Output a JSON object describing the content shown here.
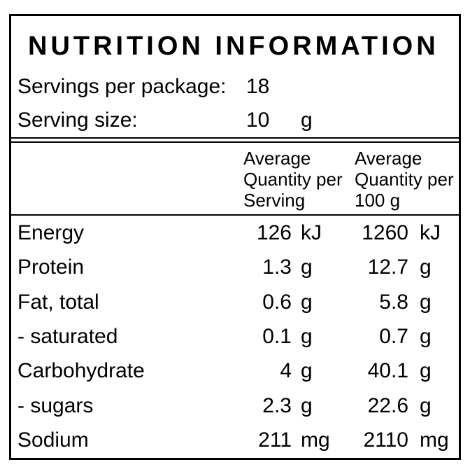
{
  "label": {
    "title": "NUTRITION INFORMATION",
    "servings_per_package": {
      "label": "Servings per package:",
      "value": "18"
    },
    "serving_size": {
      "label": "Serving size:",
      "value": "10",
      "unit": "g"
    },
    "columns": {
      "per_serving": "Average\nQuantity per\nServing",
      "per_100g": "Average\nQuantity per\n100 g"
    },
    "rows": [
      {
        "nutrient": "Energy",
        "per_serving": "126",
        "per_serving_unit": "kJ",
        "per_100g": "1260",
        "per_100g_unit": "kJ"
      },
      {
        "nutrient": "Protein",
        "per_serving": "1.3",
        "per_serving_unit": "g",
        "per_100g": "12.7",
        "per_100g_unit": "g"
      },
      {
        "nutrient": "Fat, total",
        "per_serving": "0.6",
        "per_serving_unit": "g",
        "per_100g": "5.8",
        "per_100g_unit": "g"
      },
      {
        "nutrient": "- saturated",
        "per_serving": "0.1",
        "per_serving_unit": "g",
        "per_100g": "0.7",
        "per_100g_unit": "g"
      },
      {
        "nutrient": "Carbohydrate",
        "per_serving": "4",
        "per_serving_unit": "g",
        "per_100g": "40.1",
        "per_100g_unit": "g"
      },
      {
        "nutrient": "- sugars",
        "per_serving": "2.3",
        "per_serving_unit": "g",
        "per_100g": "22.6",
        "per_100g_unit": "g"
      },
      {
        "nutrient": "Sodium",
        "per_serving": "211",
        "per_serving_unit": "mg",
        "per_100g": "2110",
        "per_100g_unit": "mg"
      }
    ],
    "colors": {
      "text": "#000000",
      "background": "#ffffff",
      "border": "#000000"
    }
  }
}
